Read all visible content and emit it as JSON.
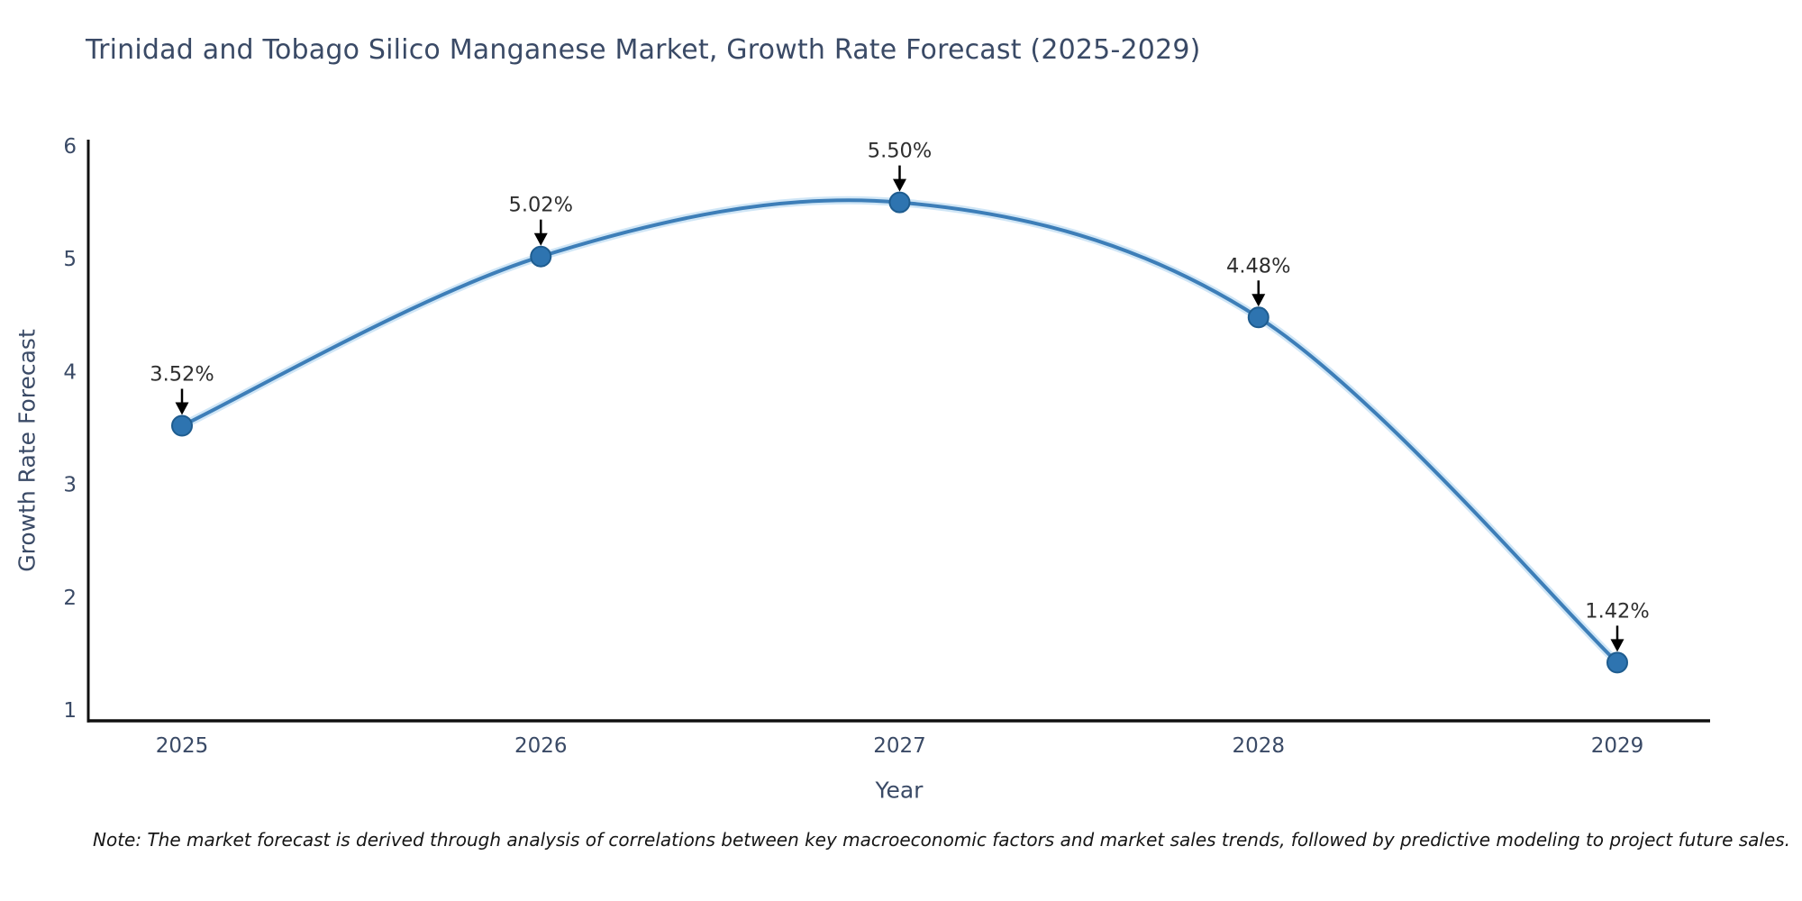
{
  "chart_data": {
    "type": "line",
    "title": "Trinidad and Tobago Silico Manganese Market, Growth Rate Forecast (2025-2029)",
    "xlabel": "Year",
    "ylabel": "Growth Rate Forecast",
    "categories": [
      "2025",
      "2026",
      "2027",
      "2028",
      "2029"
    ],
    "values": [
      3.52,
      5.02,
      5.5,
      4.48,
      1.42
    ],
    "point_labels": [
      "3.52%",
      "5.02%",
      "5.50%",
      "4.48%",
      "1.42%"
    ],
    "ylim": [
      1,
      6
    ],
    "yticks": [
      "1",
      "2",
      "3",
      "4",
      "5",
      "6"
    ],
    "grid": false,
    "legend": "none",
    "line_style": "smooth-spline",
    "colors": {
      "line": "#3d7eb8",
      "line_glow": "rgba(150,200,235,0.45)",
      "marker_fill": "#2e74b0",
      "marker_edge": "#1e5c8f",
      "axis": "#111111",
      "tick_text": "#3a4a66",
      "annotation_text": "#2e2e2e",
      "arrow": "#000000",
      "title_text": "#3a4a66"
    }
  },
  "note": "Note: The market forecast is derived through analysis of correlations between key macroeconomic factors and market sales trends, followed by predictive modeling to project future sales."
}
